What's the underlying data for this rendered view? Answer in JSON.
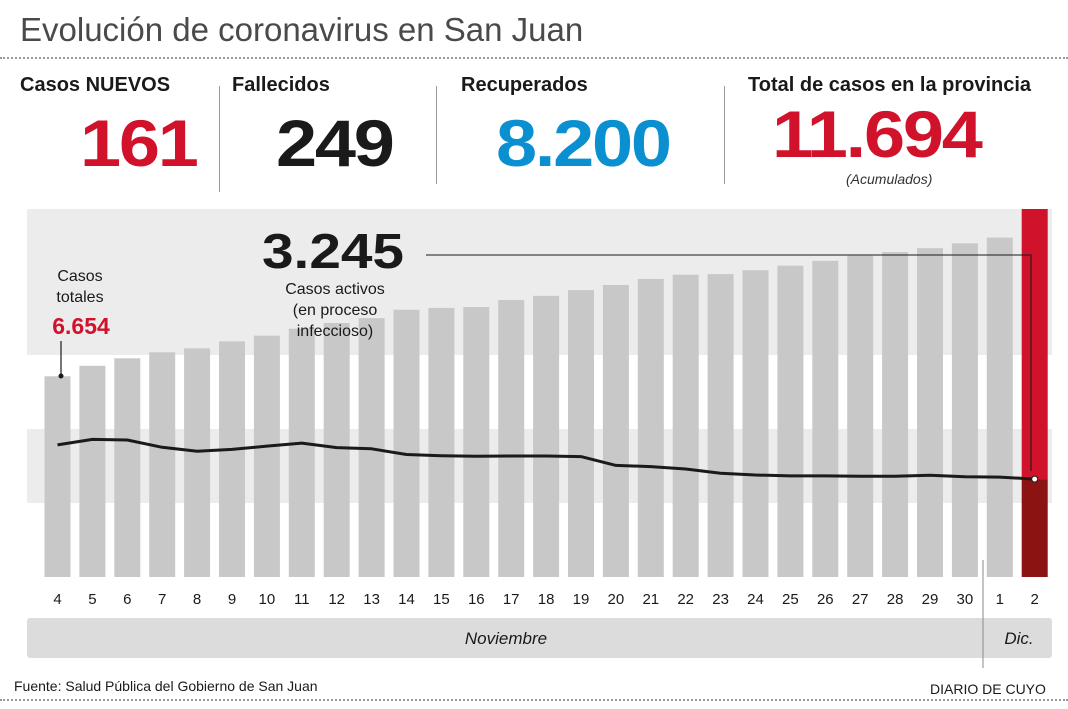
{
  "header": {
    "title": "Evolución de coronavirus en San Juan"
  },
  "stats": {
    "new_cases_label": "Casos NUEVOS",
    "new_cases_value": "161",
    "deaths_label": "Fallecidos",
    "deaths_value": "249",
    "recovered_label": "Recuperados",
    "recovered_value": "8.200",
    "total_label": "Total de casos en la provincia",
    "total_value": "11.694",
    "total_note": "(Acumulados)"
  },
  "colors": {
    "red": "#d0122b",
    "dark_red": "#8b1413",
    "blue": "#0a8fd0",
    "bar_gray": "#c8c8c8",
    "band_gray": "#ececec",
    "month_band": "#dcdcdc"
  },
  "chart_data": {
    "type": "bar",
    "x_tick_labels": [
      "4",
      "5",
      "6",
      "7",
      "8",
      "9",
      "10",
      "11",
      "12",
      "13",
      "14",
      "15",
      "16",
      "17",
      "18",
      "19",
      "20",
      "21",
      "22",
      "23",
      "24",
      "25",
      "26",
      "27",
      "28",
      "29",
      "30",
      "1",
      "2"
    ],
    "month_labels": [
      "Noviembre",
      "Dic."
    ],
    "series": [
      {
        "name": "Casos totales",
        "type": "bar",
        "values": [
          6654,
          7000,
          7250,
          7450,
          7580,
          7810,
          8000,
          8230,
          8420,
          8580,
          8860,
          8920,
          8950,
          9180,
          9320,
          9510,
          9680,
          9880,
          10020,
          10040,
          10170,
          10320,
          10480,
          10650,
          10770,
          10900,
          11060,
          11250,
          11694
        ]
      },
      {
        "name": "Casos activos",
        "type": "line",
        "values": [
          4380,
          4560,
          4540,
          4300,
          4170,
          4230,
          4340,
          4440,
          4290,
          4250,
          4060,
          4020,
          4000,
          4010,
          4010,
          3990,
          3700,
          3660,
          3580,
          3440,
          3380,
          3350,
          3350,
          3340,
          3340,
          3370,
          3320,
          3310,
          3245
        ]
      }
    ],
    "ylim": [
      0,
      12000
    ],
    "annotations": {
      "total_start_label_1": "Casos",
      "total_start_label_2": "totales",
      "total_start_value": "6.654",
      "active_value": "3.245",
      "active_label_1": "Casos activos",
      "active_label_2": "(en proceso",
      "active_label_3": "infeccioso)"
    }
  },
  "footer": {
    "source": "Fuente: Salud Pública del Gobierno de San Juan",
    "credit": "DIARIO DE CUYO"
  }
}
